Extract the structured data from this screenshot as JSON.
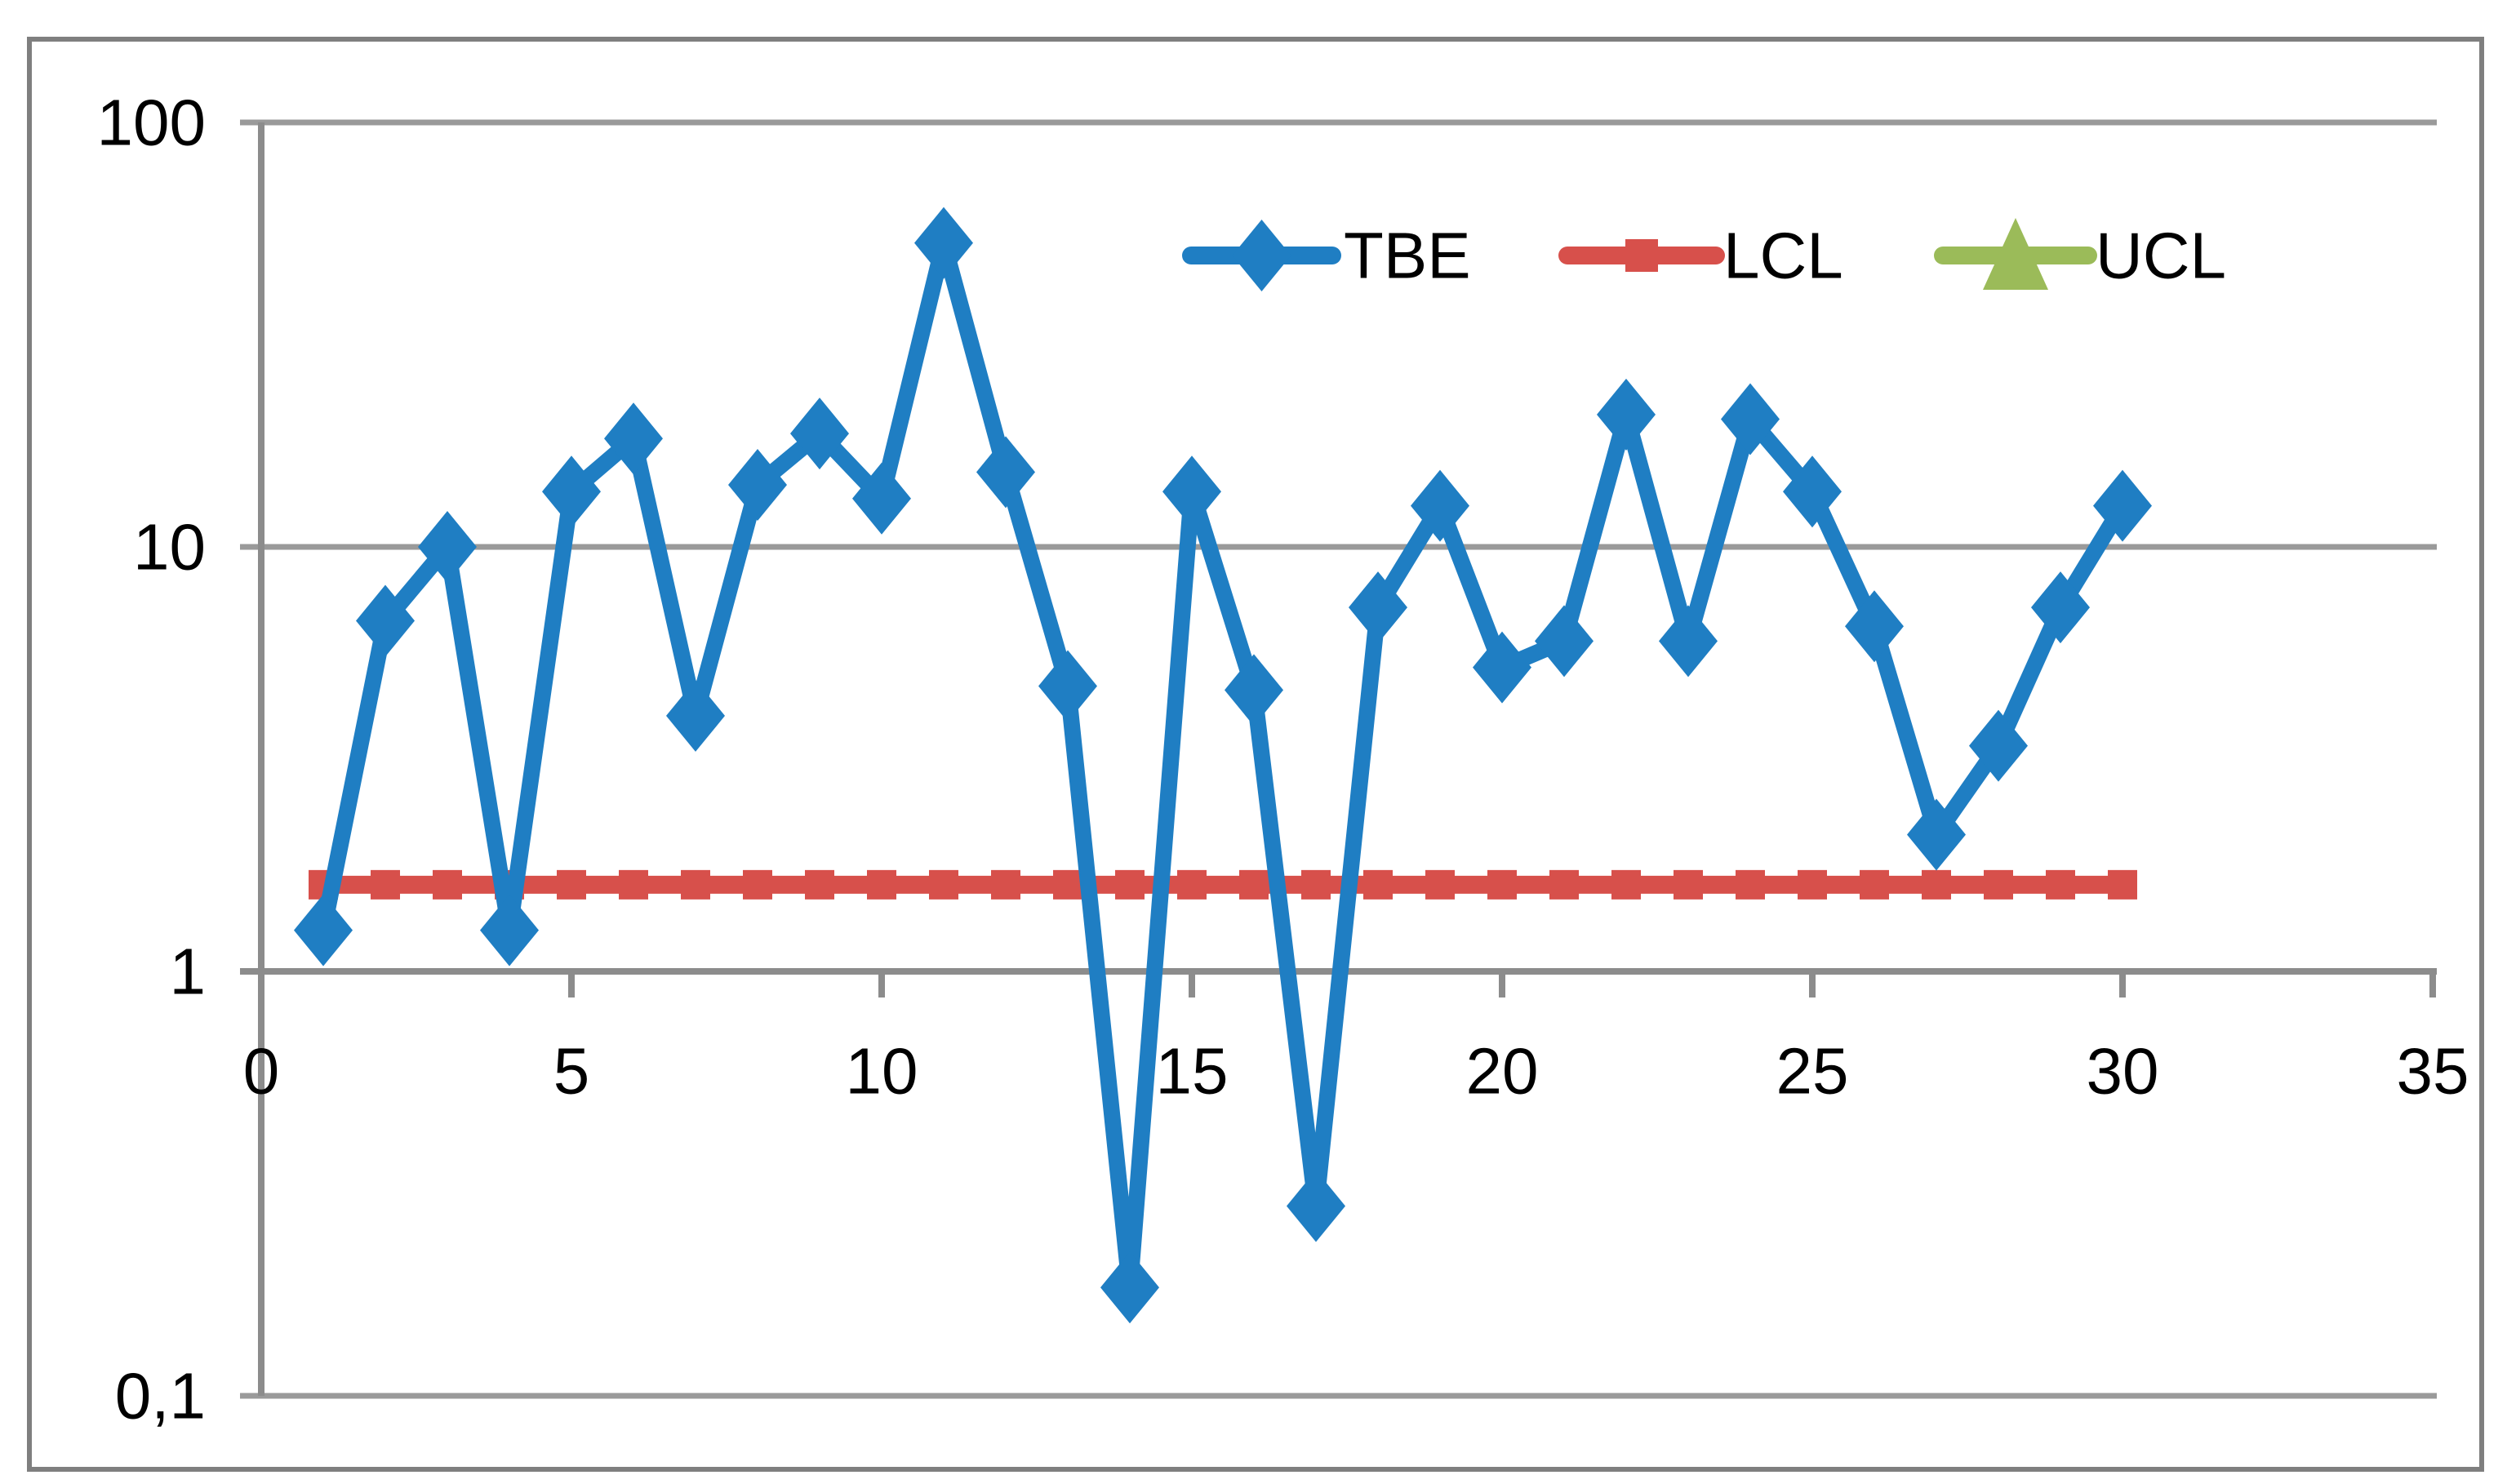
{
  "chart_data": {
    "type": "line",
    "title": "",
    "xlabel": "",
    "ylabel": "",
    "x": [
      1,
      2,
      3,
      4,
      5,
      6,
      7,
      8,
      9,
      10,
      11,
      12,
      13,
      14,
      15,
      16,
      17,
      18,
      19,
      20,
      21,
      22,
      23,
      24,
      25,
      26,
      27,
      28,
      29,
      30
    ],
    "series": [
      {
        "name": "TBE",
        "color": "#1F7EC3",
        "marker": "diamond",
        "values": [
          1.25,
          6.7,
          10,
          1.25,
          13.5,
          18,
          4,
          14,
          18.5,
          13,
          52,
          15,
          4.7,
          0.18,
          13.5,
          4.6,
          0.28,
          7.2,
          12.5,
          5.2,
          6,
          20.5,
          6,
          20,
          13.5,
          6.5,
          2.1,
          3.4,
          7.2,
          12.5
        ]
      },
      {
        "name": "LCL",
        "color": "#D7504B",
        "marker": "square",
        "constant_value": 1.6,
        "x_start": 1,
        "x_end": 30
      },
      {
        "name": "UCL",
        "color": "#9BBB59",
        "marker": "triangle",
        "values": [],
        "note": "legend entry only - no points visible inside plotted range"
      }
    ],
    "x_axis": {
      "tick_labels": [
        "0",
        "5",
        "10",
        "15",
        "20",
        "25",
        "30",
        "35"
      ],
      "tick_values": [
        0,
        5,
        10,
        15,
        20,
        25,
        30,
        35
      ],
      "min": 0,
      "max": 35
    },
    "y_axis": {
      "scale": "log",
      "tick_labels": [
        "100",
        "10",
        "1",
        "0,1"
      ],
      "tick_values": [
        100,
        10,
        1,
        0.1
      ],
      "min": 0.1,
      "max": 100,
      "decimal_separator": "comma"
    },
    "legend": {
      "position": "inside-top",
      "entries": [
        "TBE",
        "LCL",
        "UCL"
      ]
    },
    "grid": "horizontal-major-only",
    "colors": {
      "gridline": "#9A9A9A",
      "axis": "#8C8C8C",
      "border": "#7F7F7F",
      "text": "#000000",
      "background": "#FFFFFF"
    }
  }
}
